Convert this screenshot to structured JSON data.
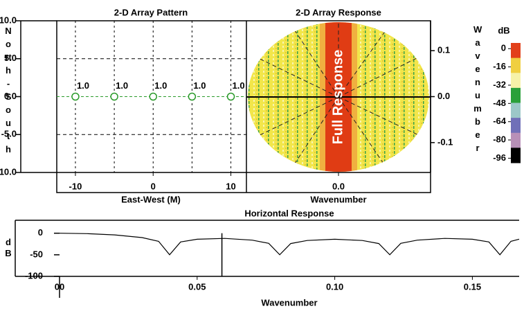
{
  "chart_data": [
    {
      "type": "scatter",
      "title": "2-D Array Pattern",
      "xlabel": "East-West (M)",
      "ylabel": "North-South",
      "x": [
        -10,
        -5,
        0,
        5,
        10
      ],
      "values": [
        0,
        0,
        0,
        0,
        0
      ],
      "weights": [
        1,
        1,
        1,
        1,
        1
      ],
      "value_labels": [
        "1.0",
        "1.0",
        "1.0",
        "1.0",
        "1.0"
      ],
      "color": "#2a9a2a",
      "xlim": [
        -12.4,
        12
      ],
      "ylim": [
        -10,
        10
      ],
      "xticks": [
        -10,
        0,
        10
      ],
      "yticks": [
        {
          "value": 10,
          "label": "10.0"
        },
        {
          "value": 5,
          "label": "5.0"
        },
        {
          "value": 0,
          "label": "0.0"
        },
        {
          "value": -5,
          "label": "-5.0"
        },
        {
          "value": -10,
          "label": "-10.0"
        }
      ],
      "xgrid": [
        -10,
        -5,
        0,
        5,
        10
      ],
      "ygrid": [
        5,
        -5
      ]
    },
    {
      "type": "image",
      "title": "2-D Array Response",
      "xlabel": "Wavenumber",
      "ylabel": "Wavenumber",
      "annotation": "Full Response",
      "xlim": [
        -0.2,
        0.2
      ],
      "ylim": [
        -0.165,
        0.165
      ],
      "xticks": [
        {
          "value": 0,
          "label": "0.0"
        }
      ],
      "yticks": [
        0.1,
        {
          "value": 0,
          "label": "0.0"
        },
        -0.1
      ],
      "colorbar": {
        "label": "dB",
        "ticks": [
          0,
          -16,
          -32,
          -48,
          -64,
          -80,
          -96
        ],
        "lim": [
          5,
          -100
        ],
        "colors": [
          "#e2401a",
          "#f0cf40",
          "#f6f2a8",
          "#2aa03a",
          "#9cc8c8",
          "#7070b8",
          "#b890b8",
          "#000000"
        ]
      }
    },
    {
      "type": "line",
      "title": "Horizontal Response",
      "xlabel": "Wavenumber",
      "ylabel": "dB",
      "x": [
        0,
        0.01,
        0.02,
        0.03,
        0.036,
        0.04,
        0.044,
        0.05,
        0.06,
        0.07,
        0.076,
        0.08,
        0.084,
        0.09,
        0.1,
        0.11,
        0.116,
        0.12,
        0.124,
        0.13,
        0.14,
        0.15,
        0.156,
        0.16,
        0.164,
        0.167
      ],
      "values": [
        0,
        -0.9,
        -3.8,
        -10.1,
        -18.8,
        -50,
        -20.3,
        -14.0,
        -12.1,
        -16.0,
        -23.5,
        -50,
        -23.9,
        -16.9,
        -14.0,
        -16.9,
        -23.9,
        -50,
        -23.5,
        -16.0,
        -12.1,
        -14.0,
        -20.3,
        -50,
        -18.8,
        -13.8
      ],
      "color": "#000000",
      "cursor": 0.059,
      "xlim": [
        0,
        0.167
      ],
      "ylim": [
        -100,
        30
      ],
      "xticks": [
        {
          "value": 0,
          "label": "00"
        },
        0.05,
        {
          "value": 0.1,
          "label": "0.10"
        },
        0.15
      ],
      "yticks": [
        0,
        -50,
        -100
      ]
    }
  ]
}
